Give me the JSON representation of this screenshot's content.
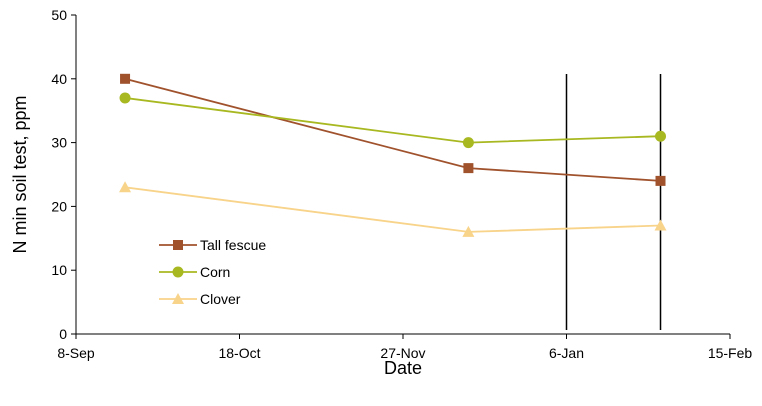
{
  "chart_data": {
    "type": "line",
    "title": "",
    "xlabel": "Date",
    "ylabel": "N min soil test, ppm",
    "x_ticks": [
      "8-Sep",
      "18-Oct",
      "27-Nov",
      "6-Jan",
      "15-Feb"
    ],
    "x_ticks_dates": [
      "2000-09-08",
      "2000-10-18",
      "2000-11-27",
      "2001-01-06",
      "2001-02-15"
    ],
    "ylim": [
      0,
      50
    ],
    "y_ticks": [
      "0",
      "10",
      "20",
      "30",
      "40",
      "50"
    ],
    "grid": false,
    "legend_position": "lower-left",
    "series": [
      {
        "name": "Tall fescue",
        "color": "#A0522D",
        "marker": "square",
        "points": [
          {
            "x": "2000-09-20",
            "y": 40
          },
          {
            "x": "2000-12-13",
            "y": 26
          },
          {
            "x": "2001-01-29",
            "y": 24
          }
        ]
      },
      {
        "name": "Corn",
        "color": "#A8B820",
        "marker": "circle",
        "points": [
          {
            "x": "2000-09-20",
            "y": 37
          },
          {
            "x": "2000-12-13",
            "y": 30
          },
          {
            "x": "2001-01-29",
            "y": 31
          }
        ]
      },
      {
        "name": "Clover",
        "color": "#F8D38A",
        "marker": "triangle",
        "points": [
          {
            "x": "2000-09-20",
            "y": 23
          },
          {
            "x": "2000-12-13",
            "y": 16
          },
          {
            "x": "2001-01-29",
            "y": 17
          }
        ]
      }
    ],
    "vertical_lines": [
      "2001-01-06",
      "2001-01-29"
    ]
  }
}
